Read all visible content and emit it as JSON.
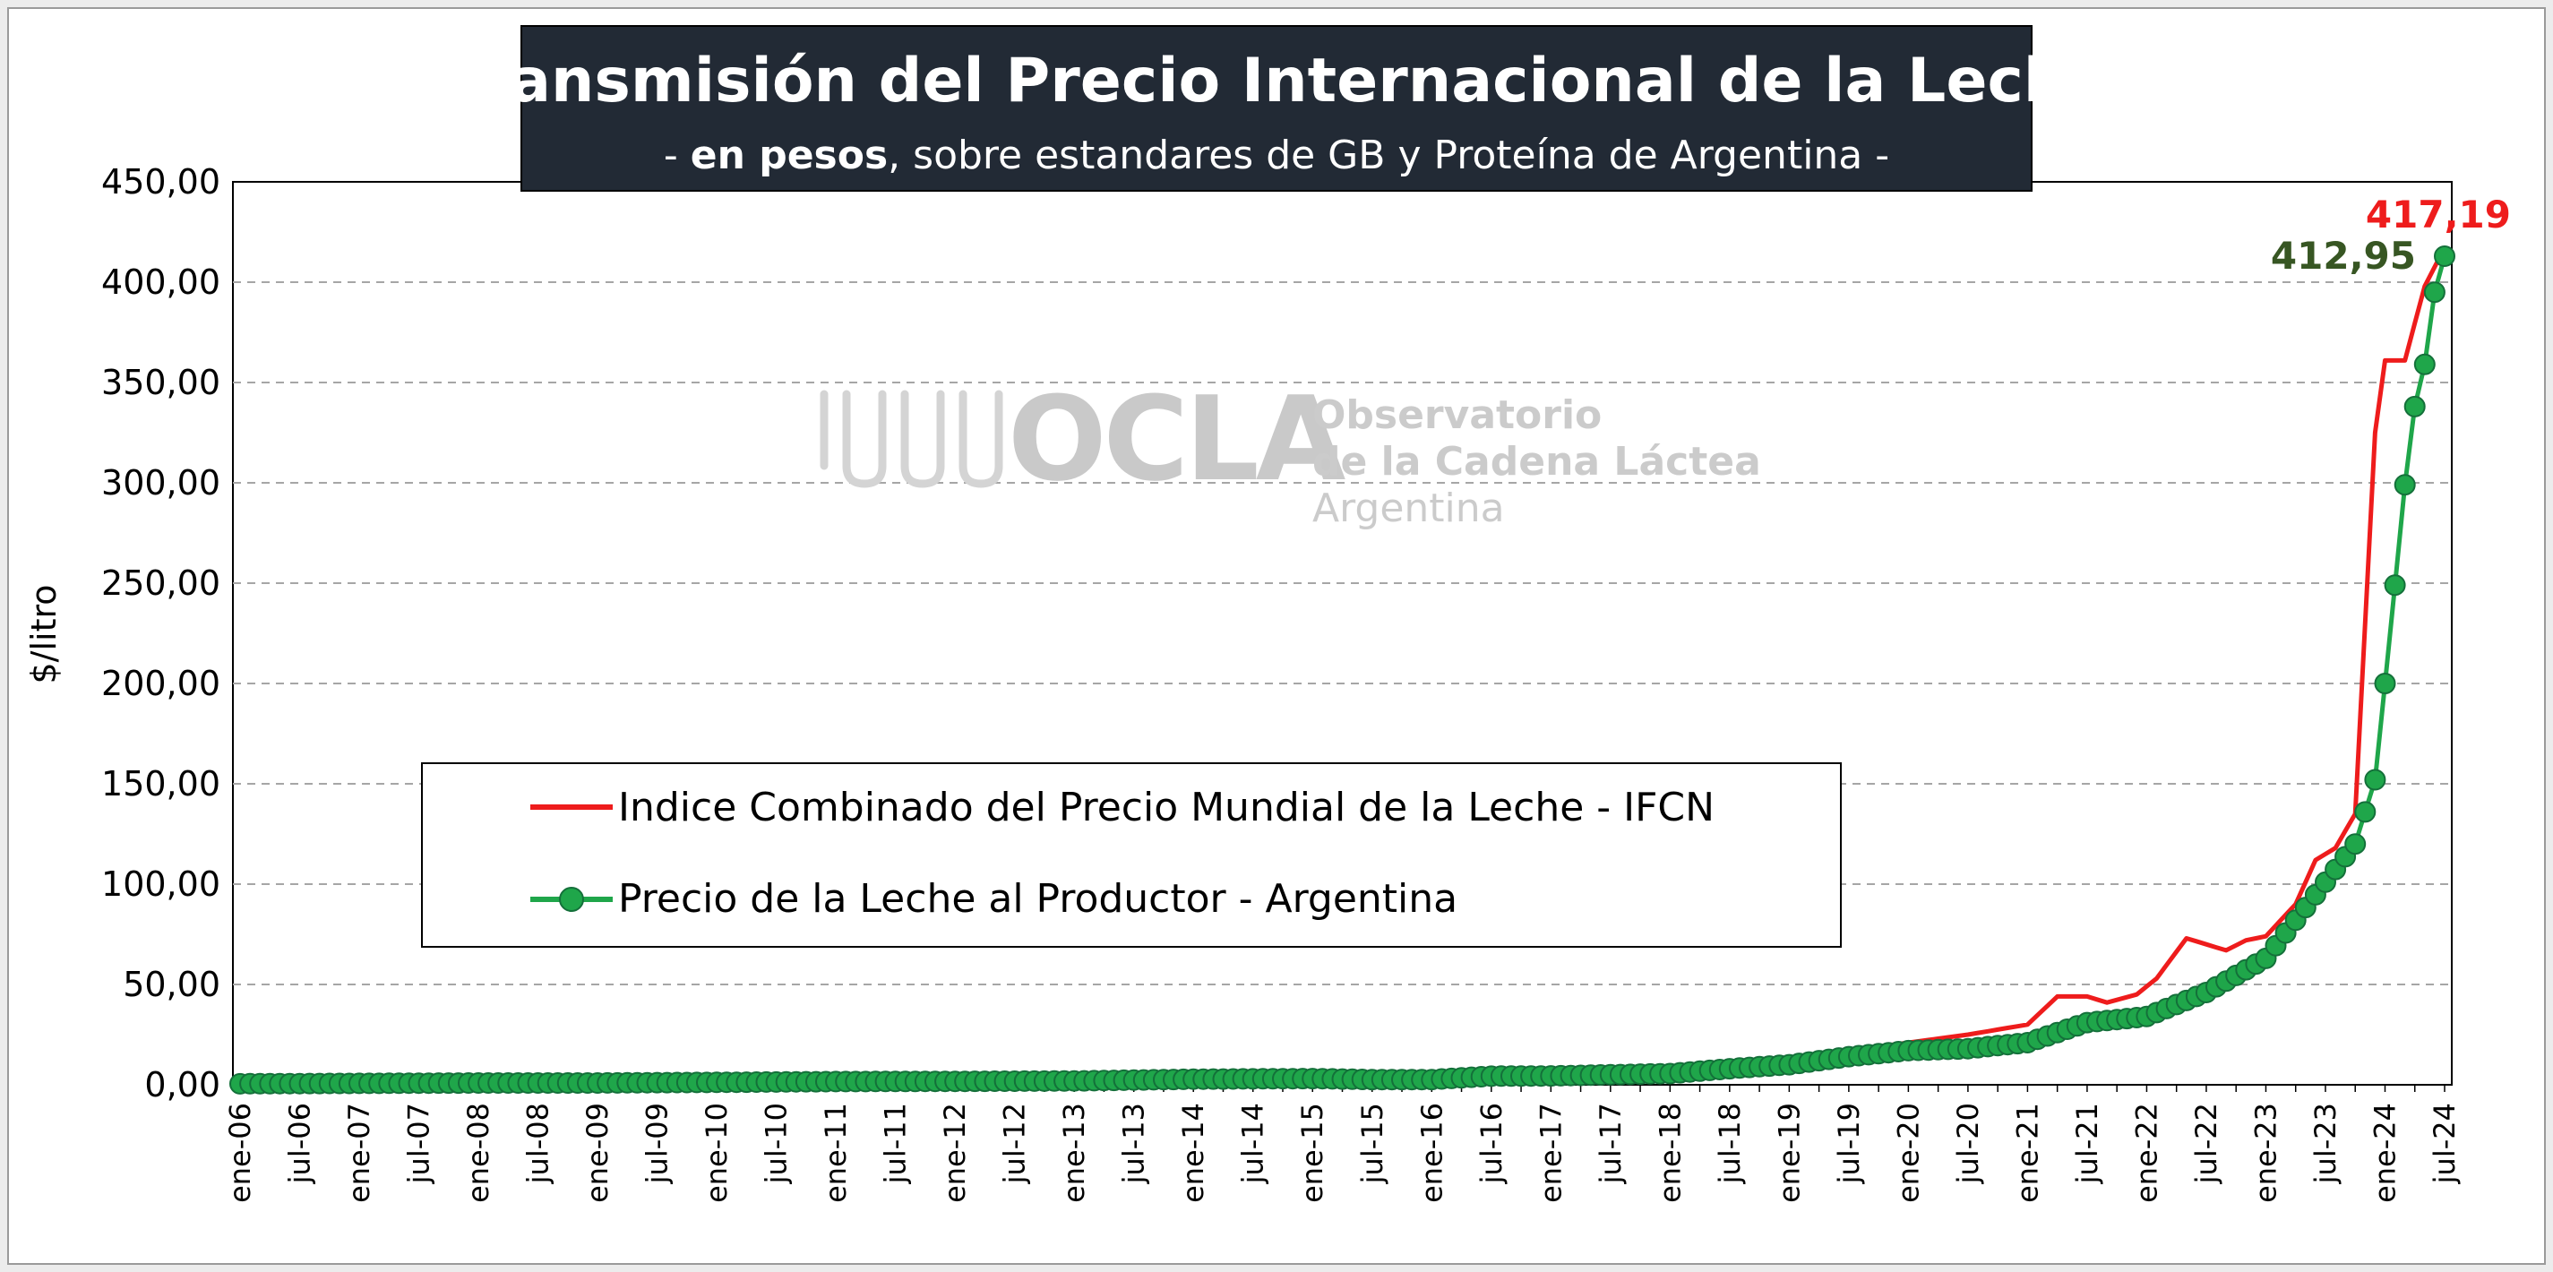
{
  "chart_data": {
    "type": "line",
    "title": "Transmisión del Precio Internacional de la Leche",
    "subtitle_prefix": "- ",
    "subtitle_bold": "en pesos",
    "subtitle_rest": ", sobre estandares de GB y Proteína de  Argentina -",
    "ylabel": "$/litro",
    "xlabel": "",
    "ylim": [
      0,
      450
    ],
    "yticks": [
      "0,00",
      "50,00",
      "100,00",
      "150,00",
      "200,00",
      "250,00",
      "300,00",
      "350,00",
      "400,00",
      "450,00"
    ],
    "grid": "horizontal dashed",
    "x_start": "ene-06",
    "x_end": "jul-24",
    "x_ticks": [
      "ene-06",
      "jul-06",
      "ene-07",
      "jul-07",
      "ene-08",
      "jul-08",
      "ene-09",
      "jul-09",
      "ene-10",
      "jul-10",
      "ene-11",
      "jul-11",
      "ene-12",
      "jul-12",
      "ene-13",
      "jul-13",
      "ene-14",
      "jul-14",
      "ene-15",
      "jul-15",
      "ene-16",
      "jul-16",
      "ene-17",
      "jul-17",
      "ene-18",
      "jul-18",
      "ene-19",
      "jul-19",
      "ene-20",
      "jul-20",
      "ene-21",
      "jul-21",
      "ene-22",
      "jul-22",
      "ene-23",
      "jul-23",
      "ene-24",
      "jul-24"
    ],
    "legend_position": "center-left",
    "series": [
      {
        "name": "Indice Combinado del Precio Mundial de la Leche - IFCN",
        "color": "#ee1c1c",
        "markers": false,
        "points": [
          [
            "ene-06",
            0.6
          ],
          [
            "ene-07",
            0.7
          ],
          [
            "ene-08",
            1.0
          ],
          [
            "ene-09",
            0.9
          ],
          [
            "ene-10",
            1.3
          ],
          [
            "ene-11",
            1.7
          ],
          [
            "ene-12",
            1.8
          ],
          [
            "ene-13",
            2.0
          ],
          [
            "ene-14",
            3.0
          ],
          [
            "ene-15",
            3.2
          ],
          [
            "jul-15",
            2.6
          ],
          [
            "ene-16",
            2.6
          ],
          [
            "jul-16",
            4.5
          ],
          [
            "ene-17",
            4.6
          ],
          [
            "jul-17",
            5.2
          ],
          [
            "ene-18",
            6.0
          ],
          [
            "jul-18",
            10.0
          ],
          [
            "ene-19",
            12.0
          ],
          [
            "jul-19",
            17.0
          ],
          [
            "ene-20",
            21.0
          ],
          [
            "jul-20",
            25.0
          ],
          [
            "ene-21",
            30.0
          ],
          [
            "abr-21",
            44.0
          ],
          [
            "jul-21",
            44.0
          ],
          [
            "sep-21",
            41.0
          ],
          [
            "dic-21",
            45.0
          ],
          [
            "feb-22",
            53.0
          ],
          [
            "may-22",
            73.0
          ],
          [
            "jul-22",
            70.0
          ],
          [
            "sep-22",
            67.0
          ],
          [
            "nov-22",
            72.0
          ],
          [
            "ene-23",
            74.0
          ],
          [
            "abr-23",
            90.0
          ],
          [
            "jun-23",
            112.0
          ],
          [
            "ago-23",
            118.0
          ],
          [
            "oct-23",
            135.0
          ],
          [
            "dic-23",
            325.0
          ],
          [
            "ene-24",
            361.0
          ],
          [
            "mar-24",
            361.0
          ],
          [
            "may-24",
            398.0
          ],
          [
            "jul-24",
            417.19
          ]
        ]
      },
      {
        "name": "Precio de la Leche al Productor - Argentina",
        "color": "#1fa64a",
        "marker_color": "#1fa64a",
        "markers": true,
        "points": [
          [
            "ene-06",
            0.5
          ],
          [
            "ene-07",
            0.7
          ],
          [
            "ene-08",
            0.9
          ],
          [
            "ene-09",
            0.9
          ],
          [
            "ene-10",
            1.2
          ],
          [
            "ene-11",
            1.6
          ],
          [
            "ene-12",
            1.7
          ],
          [
            "ene-13",
            1.9
          ],
          [
            "ene-14",
            2.8
          ],
          [
            "ene-15",
            3.1
          ],
          [
            "jul-15",
            2.6
          ],
          [
            "ene-16",
            2.6
          ],
          [
            "jul-16",
            4.3
          ],
          [
            "ene-17",
            4.4
          ],
          [
            "jul-17",
            5.0
          ],
          [
            "ene-18",
            5.6
          ],
          [
            "jul-18",
            8.0
          ],
          [
            "ene-19",
            10.0
          ],
          [
            "jul-19",
            14.0
          ],
          [
            "ene-20",
            17.0
          ],
          [
            "jul-20",
            18.0
          ],
          [
            "ene-21",
            21.0
          ],
          [
            "jul-21",
            31.0
          ],
          [
            "ene-22",
            34.0
          ],
          [
            "jul-22",
            46.0
          ],
          [
            "ene-23",
            63.0
          ],
          [
            "jul-23",
            101.0
          ],
          [
            "oct-23",
            120.0
          ],
          [
            "dic-23",
            152.0
          ],
          [
            "ene-24",
            200.0
          ],
          [
            "feb-24",
            249.0
          ],
          [
            "mar-24",
            299.0
          ],
          [
            "abr-24",
            338.0
          ],
          [
            "may-24",
            359.0
          ],
          [
            "jun-24",
            395.0
          ],
          [
            "jul-24",
            412.95
          ]
        ]
      }
    ],
    "annotations": [
      {
        "text": "417,19",
        "color": "#ee1c1c"
      },
      {
        "text": "412,95",
        "color": "#375623"
      }
    ]
  },
  "watermark": {
    "logo_text": "OCLA",
    "line1": "Observatorio",
    "line2": "de la Cadena Láctea",
    "line3": "Argentina"
  }
}
